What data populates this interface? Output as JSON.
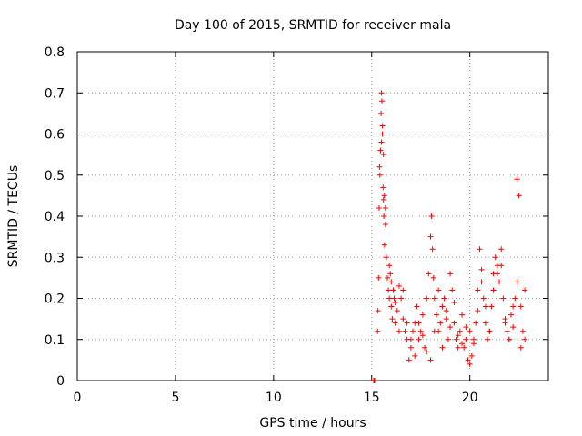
{
  "chart_data": {
    "type": "scatter",
    "title": "Day 100 of 2015, SRMTID for receiver mala",
    "xlabel": "GPS time / hours",
    "ylabel": "SRMTID / TECUs",
    "xlim": [
      0,
      24
    ],
    "ylim": [
      0,
      0.8
    ],
    "xticks": [
      0,
      5,
      10,
      15,
      20
    ],
    "yticks": [
      0,
      0.1,
      0.2,
      0.3,
      0.4,
      0.5,
      0.6,
      0.7,
      0.8
    ],
    "xtick_labels": [
      "0",
      "5",
      "10",
      "15",
      "20"
    ],
    "ytick_labels": [
      "0",
      "0.1",
      "0.2",
      "0.3",
      "0.4",
      "0.5",
      "0.6",
      "0.7",
      "0.8"
    ],
    "grid": true,
    "marker": "+",
    "color": "#ff0000",
    "series": [
      {
        "x": [
          15.1,
          15.12,
          15.15,
          15.3,
          15.32,
          15.35,
          15.38,
          15.4,
          15.42,
          15.45,
          15.48,
          15.5,
          15.52,
          15.55,
          15.58,
          15.6,
          15.62,
          15.65,
          15.7,
          15.75,
          15.8,
          15.85,
          15.9,
          15.95,
          16.0,
          16.05,
          16.1,
          16.15,
          16.2,
          16.3,
          16.4,
          16.5,
          16.6,
          16.7,
          16.8,
          16.9,
          17.0,
          17.1,
          17.2,
          17.3,
          17.4,
          17.5,
          17.6,
          17.7,
          17.8,
          17.9,
          18.0,
          18.05,
          18.1,
          18.15,
          18.2,
          18.3,
          18.4,
          18.5,
          18.6,
          18.7,
          18.8,
          18.9,
          19.0,
          19.1,
          19.2,
          19.3,
          19.4,
          19.5,
          19.6,
          19.7,
          19.8,
          19.9,
          20.0,
          20.1,
          20.2,
          20.3,
          20.4,
          20.5,
          20.6,
          20.7,
          20.8,
          20.9,
          21.0,
          21.1,
          21.2,
          21.3,
          21.4,
          21.5,
          21.6,
          21.7,
          21.8,
          21.9,
          22.0,
          22.1,
          22.2,
          22.3,
          22.4,
          22.5,
          22.6,
          22.7,
          22.8
        ],
        "y": [
          0.0,
          0.0,
          0.0,
          0.12,
          0.17,
          0.25,
          0.42,
          0.52,
          0.5,
          0.56,
          0.65,
          0.7,
          0.68,
          0.62,
          0.47,
          0.44,
          0.4,
          0.33,
          0.38,
          0.3,
          0.25,
          0.22,
          0.2,
          0.26,
          0.18,
          0.15,
          0.22,
          0.2,
          0.19,
          0.17,
          0.23,
          0.2,
          0.15,
          0.12,
          0.1,
          0.05,
          0.08,
          0.12,
          0.14,
          0.18,
          0.1,
          0.12,
          0.16,
          0.08,
          0.2,
          0.26,
          0.35,
          0.4,
          0.32,
          0.25,
          0.2,
          0.16,
          0.12,
          0.14,
          0.18,
          0.2,
          0.15,
          0.1,
          0.26,
          0.22,
          0.14,
          0.1,
          0.08,
          0.12,
          0.16,
          0.08,
          0.1,
          0.05,
          0.12,
          0.06,
          0.1,
          0.14,
          0.22,
          0.32,
          0.27,
          0.2,
          0.14,
          0.1,
          0.12,
          0.18,
          0.26,
          0.3,
          0.28,
          0.24,
          0.32,
          0.2,
          0.14,
          0.12,
          0.1,
          0.16,
          0.18,
          0.2,
          0.49,
          0.45,
          0.18,
          0.12,
          0.1
        ]
      },
      {
        "x": [
          15.5,
          15.55,
          15.6,
          15.65,
          15.7,
          15.9,
          16.0,
          16.2,
          16.4,
          16.6,
          16.8,
          17.0,
          17.2,
          17.4,
          17.6,
          17.8,
          18.0,
          18.2,
          18.4,
          18.6,
          18.8,
          19.0,
          19.2,
          19.4,
          19.6,
          19.8,
          20.0,
          20.2,
          20.4,
          20.6,
          20.8,
          21.0,
          21.2,
          21.4,
          21.6,
          21.8,
          22.0,
          22.2,
          22.4,
          22.6,
          22.8
        ],
        "y": [
          0.58,
          0.6,
          0.55,
          0.45,
          0.42,
          0.28,
          0.24,
          0.14,
          0.12,
          0.22,
          0.14,
          0.1,
          0.06,
          0.14,
          0.11,
          0.07,
          0.05,
          0.12,
          0.22,
          0.08,
          0.17,
          0.13,
          0.19,
          0.11,
          0.09,
          0.13,
          0.04,
          0.09,
          0.17,
          0.24,
          0.18,
          0.12,
          0.22,
          0.26,
          0.28,
          0.15,
          0.1,
          0.13,
          0.24,
          0.08,
          0.22
        ]
      }
    ]
  }
}
